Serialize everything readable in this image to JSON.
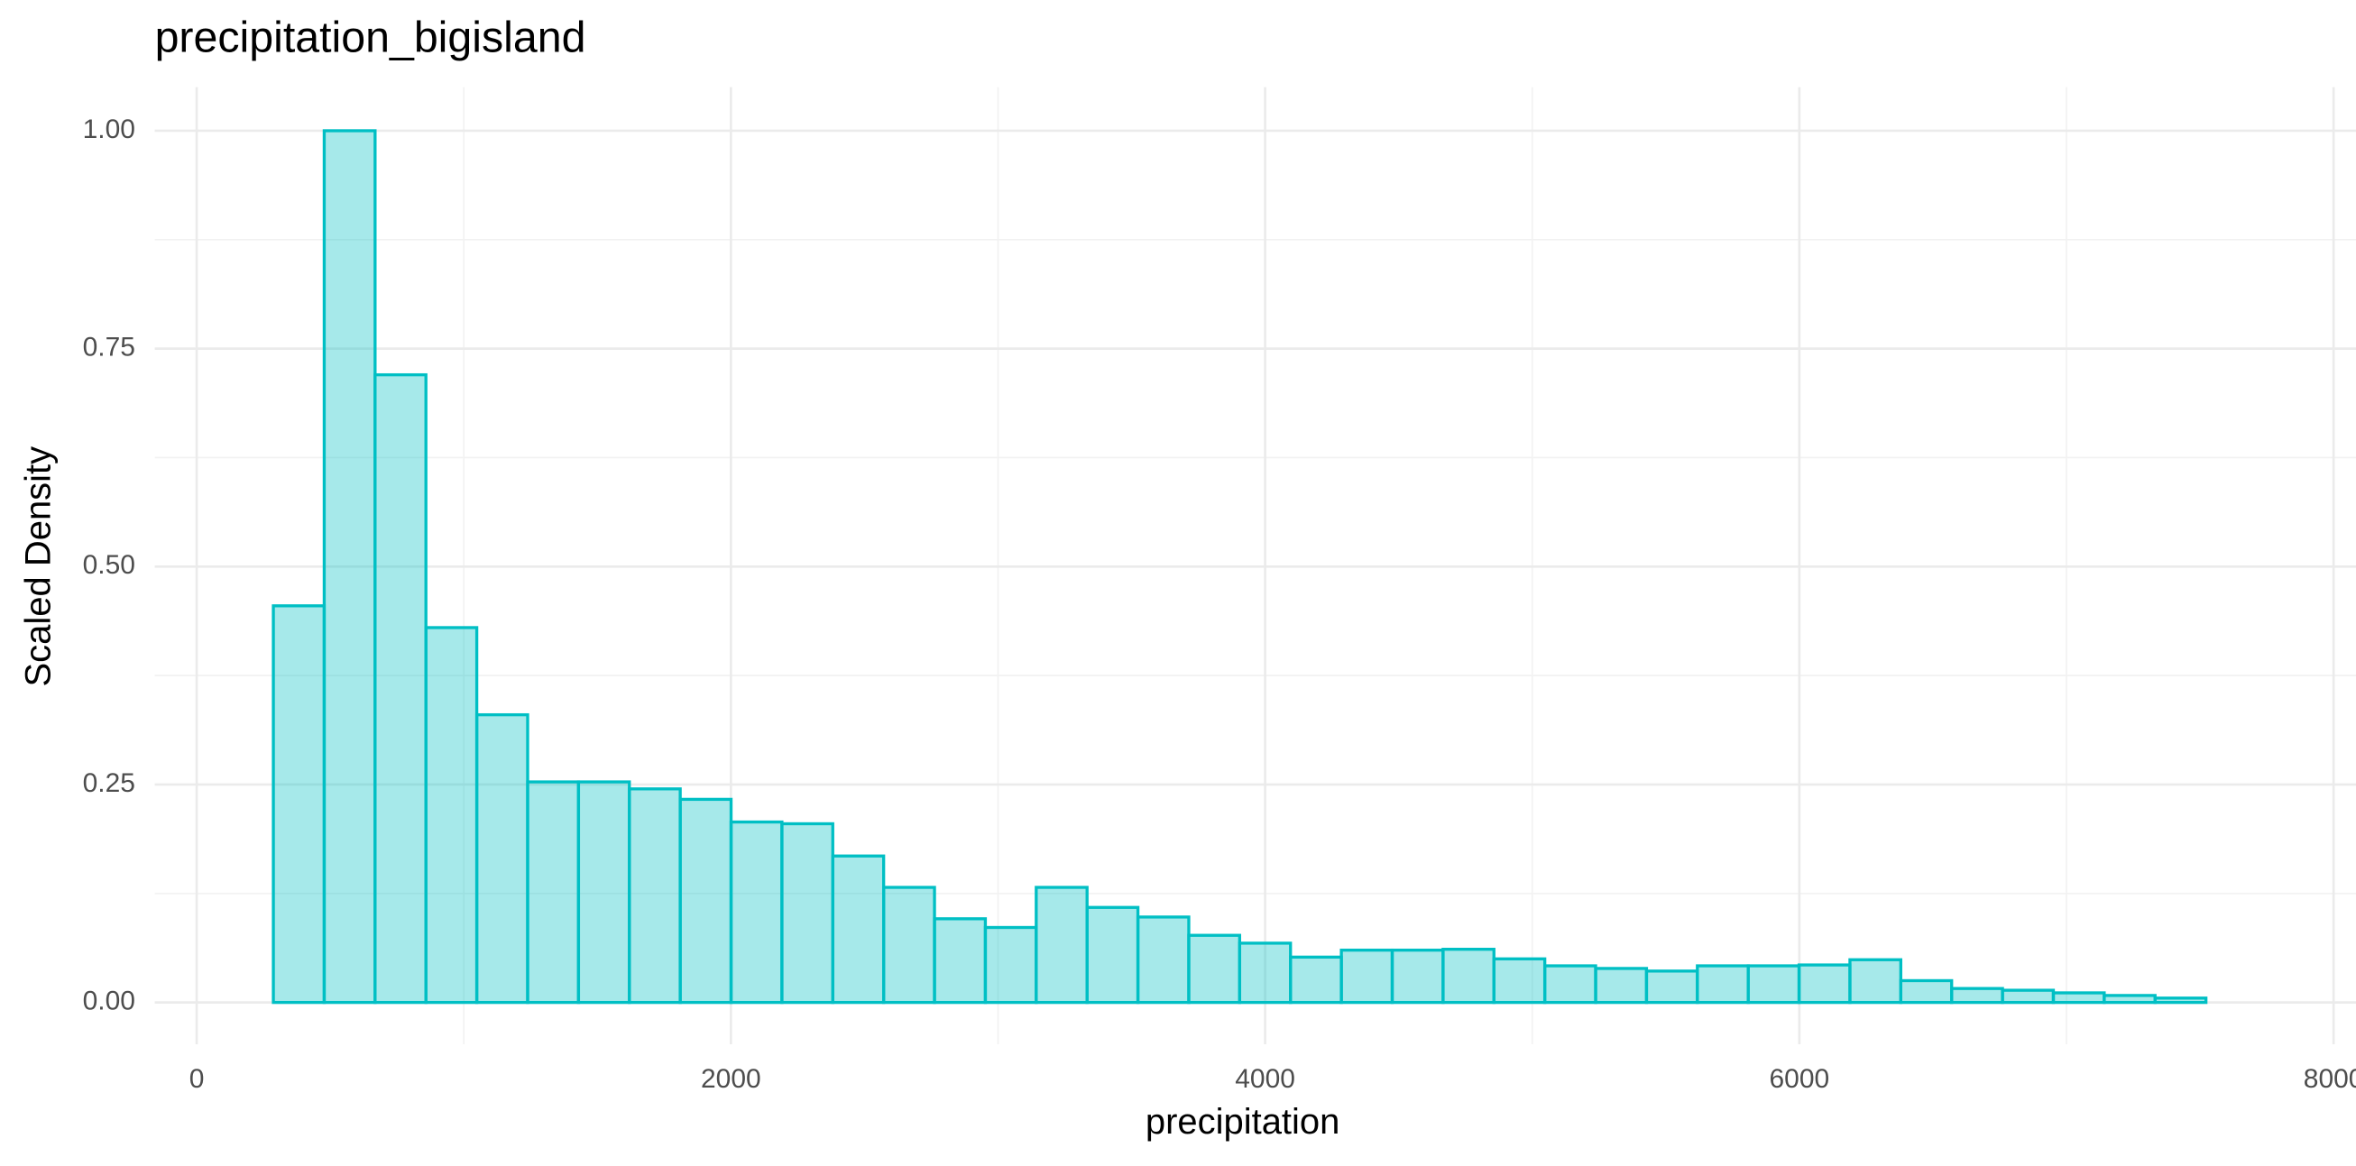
{
  "chart_data": {
    "type": "histogram",
    "title": "precipitation_bigisland",
    "x_label": "precipitation",
    "y_label": "Scaled Density",
    "bins": [
      287,
      477.4,
      667.8,
      858.2,
      1048.6,
      1239,
      1429.4,
      1619.8,
      1810.2,
      2000.6,
      2191,
      2381.4,
      2571.8,
      2762.2,
      2952.6,
      3143,
      3333.4,
      3523.8,
      3714.2,
      3904.6,
      4095,
      4285.4,
      4475.8,
      4666.2,
      4856.6,
      5047,
      5237.4,
      5427.8,
      5618.2,
      5808.6,
      5999,
      6189.4,
      6379.8,
      6570.2,
      6760.6,
      6951,
      7141.4,
      7331.8,
      7522.2
    ],
    "values": [
      0.455,
      1.0,
      0.72,
      0.43,
      0.33,
      0.253,
      0.253,
      0.245,
      0.233,
      0.207,
      0.205,
      0.168,
      0.132,
      0.096,
      0.086,
      0.132,
      0.109,
      0.098,
      0.077,
      0.068,
      0.052,
      0.06,
      0.06,
      0.061,
      0.05,
      0.042,
      0.039,
      0.036,
      0.042,
      0.042,
      0.043,
      0.049,
      0.025,
      0.016,
      0.014,
      0.011,
      0.008,
      0.005
    ],
    "color": "#00BFC4",
    "fill_opacity": 0.35,
    "xlim": [
      -157,
      8084
    ],
    "ylim": [
      -0.048,
      1.05
    ],
    "xticks": [
      0,
      2000,
      4000,
      6000,
      8000
    ],
    "yticks": [
      {
        "value": 0,
        "label": "0.00"
      },
      {
        "value": 0.25,
        "label": "0.25"
      },
      {
        "value": 0.5,
        "label": "0.50"
      },
      {
        "value": 0.75,
        "label": "0.75"
      },
      {
        "value": 1,
        "label": "1.00"
      }
    ],
    "x_minor_ticks": [
      1000,
      3000,
      5000,
      7000
    ],
    "y_minor_ticks": [
      0.125,
      0.375,
      0.625,
      0.875
    ],
    "grid": true
  }
}
